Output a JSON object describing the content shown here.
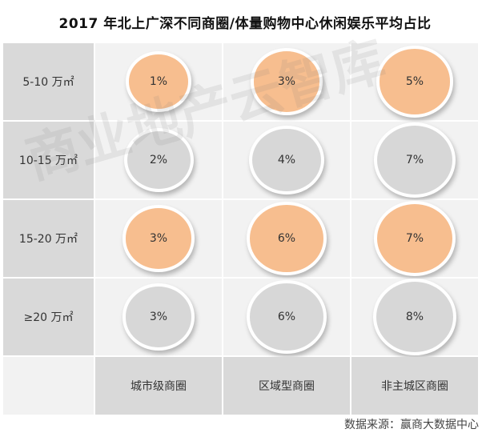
{
  "title": "2017 年北上广深不同商圈/体量购物中心休闲娱乐平均占比",
  "watermark": "商业地产云智库",
  "source": "数据来源：赢商大数据中心",
  "colors": {
    "orange": "#f7be8f",
    "gray": "#d7d7d7",
    "cell_bg": "#f2f2f2",
    "label_bg": "#d9d9d9"
  },
  "chart_data": {
    "type": "table",
    "title": "2017 年北上广深不同商圈/体量购物中心休闲娱乐平均占比",
    "columns": [
      "城市级商圈",
      "区域型商圈",
      "非主城区商圈"
    ],
    "rows": [
      {
        "label": "5-10 万㎡",
        "values": [
          1,
          3,
          5
        ],
        "texts": [
          "1%",
          "3%",
          "5%"
        ],
        "colors": [
          "orange",
          "orange",
          "orange"
        ]
      },
      {
        "label": "10-15 万㎡",
        "values": [
          2,
          4,
          7
        ],
        "texts": [
          "2%",
          "4%",
          "7%"
        ],
        "colors": [
          "gray",
          "gray",
          "gray"
        ]
      },
      {
        "label": "15-20 万㎡",
        "values": [
          3,
          6,
          7
        ],
        "texts": [
          "3%",
          "6%",
          "7%"
        ],
        "colors": [
          "orange",
          "orange",
          "orange"
        ]
      },
      {
        "label": "≥20 万㎡",
        "values": [
          3,
          6,
          8
        ],
        "texts": [
          "3%",
          "6%",
          "8%"
        ],
        "colors": [
          "gray",
          "gray",
          "gray"
        ]
      }
    ],
    "unit": "%"
  }
}
